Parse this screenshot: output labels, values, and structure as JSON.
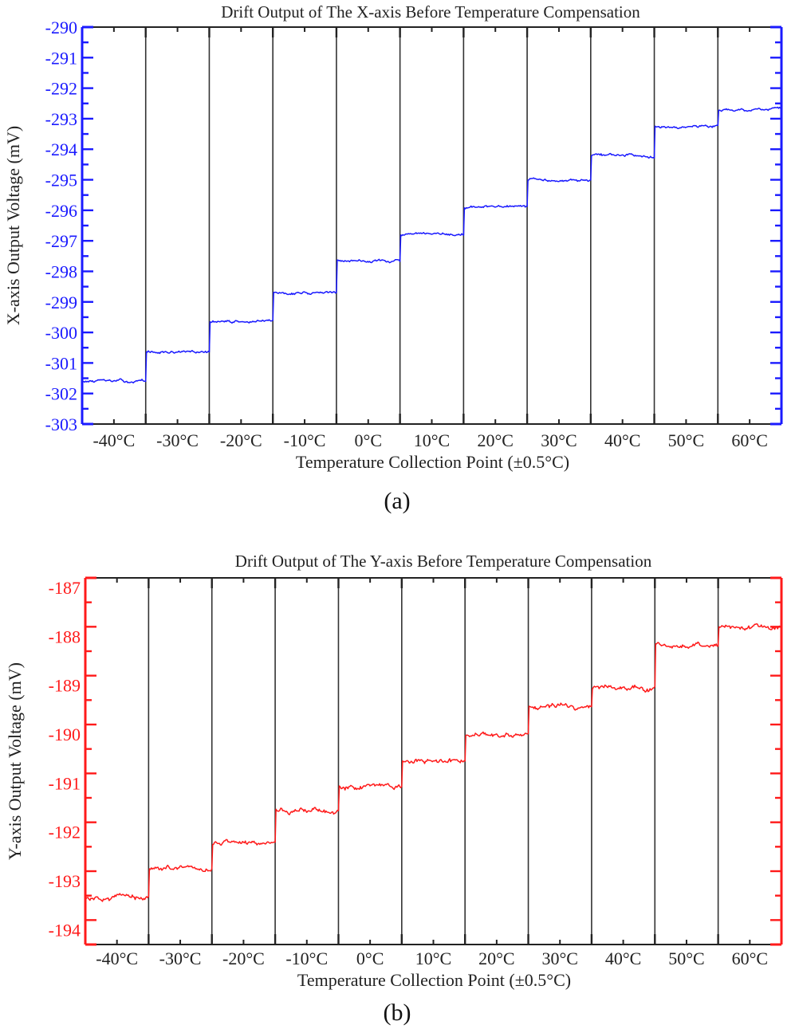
{
  "figures": [
    {
      "id": "a",
      "caption": "(a)",
      "title": "Drift Output of The X-axis Before Temperature Compensation",
      "ylabel": "X-axis Output Voltage (mV)",
      "xlabel": "Temperature Collection Point (±0.5°C)",
      "color": "#1a1aff",
      "y_ticks": [
        "-290",
        "-291",
        "-292",
        "-293",
        "-294",
        "-295",
        "-296",
        "-297",
        "-298",
        "-299",
        "-300",
        "-301",
        "-302",
        "-303"
      ]
    },
    {
      "id": "b",
      "caption": "(b)",
      "title": "Drift Output of The Y-axis Before Temperature Compensation",
      "ylabel": "Y-axis Output Voltage (mV)",
      "xlabel": "Temperature Collection Point (±0.5°C)",
      "color": "#ff1a1a",
      "y_ticks": [
        "-187",
        "-188",
        "-189",
        "-190",
        "-191",
        "-192",
        "-193",
        "-194"
      ]
    }
  ],
  "chart_data": [
    {
      "type": "line",
      "title": "Drift Output of The X-axis Before Temperature Compensation",
      "xlabel": "Temperature Collection Point (±0.5°C)",
      "ylabel": "X-axis Output Voltage (mV)",
      "categories": [
        "-40°C",
        "-30°C",
        "-20°C",
        "-10°C",
        "0°C",
        "10°C",
        "20°C",
        "30°C",
        "40°C",
        "50°C",
        "60°C"
      ],
      "series": [
        {
          "name": "X-axis output",
          "color": "#1a1aff",
          "values": [
            -301.6,
            -300.65,
            -299.65,
            -298.7,
            -297.65,
            -296.8,
            -295.9,
            -295.0,
            -294.2,
            -293.25,
            -292.7
          ]
        }
      ],
      "ylim": [
        -303,
        -290
      ],
      "y_tick_step": 1,
      "y_minor_step": 0.5,
      "grid": false,
      "category_separators": true,
      "legend": "none",
      "caption": "(a)"
    },
    {
      "type": "line",
      "title": "Drift Output of The Y-axis Before Temperature Compensation",
      "xlabel": "Temperature Collection Point (±0.5°C)",
      "ylabel": "Y-axis Output Voltage (mV)",
      "categories": [
        "-40°C",
        "-30°C",
        "-20°C",
        "-10°C",
        "0°C",
        "10°C",
        "20°C",
        "30°C",
        "40°C",
        "50°C",
        "60°C"
      ],
      "series": [
        {
          "name": "Y-axis output",
          "color": "#ff1a1a",
          "values": [
            -193.55,
            -192.92,
            -192.42,
            -191.76,
            -191.27,
            -190.75,
            -190.2,
            -189.63,
            -189.26,
            -188.39,
            -188.02
          ]
        }
      ],
      "ylim": [
        -194.5,
        -187
      ],
      "y_tick_step": 1,
      "y_minor_step": 0.5,
      "grid": false,
      "category_separators": true,
      "legend": "none",
      "caption": "(b)"
    }
  ]
}
